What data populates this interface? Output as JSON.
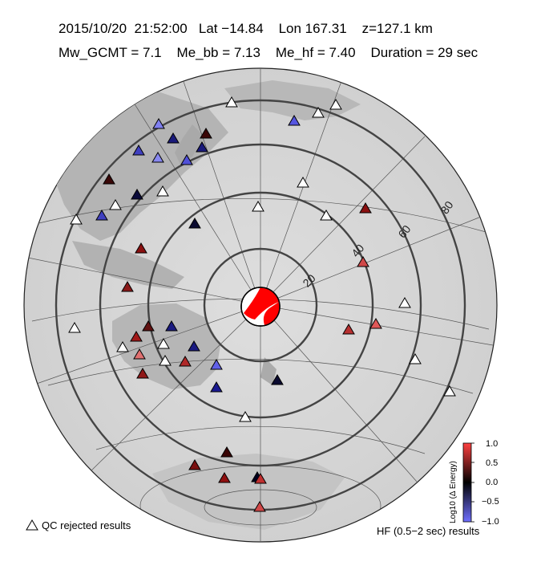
{
  "header": {
    "line1": "2015/10/20  21:52:00   Lat −14.84    Lon 167.31    z=127.1 km",
    "line2": "Mw_GCMT = 7.1    Me_bb = 7.13    Me_hf = 7.40    Duration = 29 sec"
  },
  "distance_labels": [
    "20",
    "40",
    "60",
    "80"
  ],
  "colorbar": {
    "title": "Log10 (Δ Energy)",
    "ticks": [
      "1.0",
      "0.5",
      "0.0",
      "−0.5",
      "−1.0"
    ],
    "colors": [
      "#ff4040",
      "#000000",
      "#6f6fff"
    ]
  },
  "legend": {
    "qc_label": "QC rejected results",
    "hf_label": "HF (0.5−2 sec) results"
  },
  "colors": {
    "station_outline": "#000000",
    "qc_fill": "#ffffff",
    "ring": "#444444",
    "ocean": "#d8d8d8",
    "land": "#b0b0b0"
  }
}
